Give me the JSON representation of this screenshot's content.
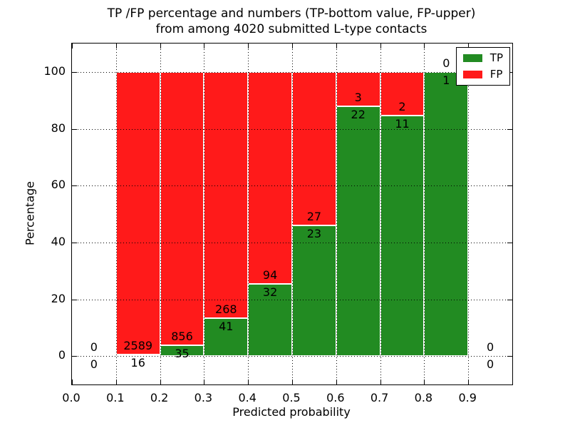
{
  "chart_data": {
    "type": "bar",
    "stacked": true,
    "normalized_to_percent": true,
    "title_lines": [
      "TP /FP percentage and numbers (TP-bottom value, FP-upper)",
      "from among 4020 submitted L-type contacts"
    ],
    "xlabel": "Predicted probability",
    "ylabel": "Percentage",
    "xlim": [
      0.0,
      1.0
    ],
    "ylim": [
      -10,
      110
    ],
    "xticks": [
      "0.0",
      "0.1",
      "0.2",
      "0.3",
      "0.4",
      "0.5",
      "0.6",
      "0.7",
      "0.8",
      "0.9"
    ],
    "yticks": [
      "0",
      "20",
      "40",
      "60",
      "80",
      "100"
    ],
    "grid": true,
    "grid_style": "dotted",
    "tp_color": "#228b22",
    "fp_color": "#ff1a1a",
    "bins": [
      {
        "x0": 0.0,
        "x1": 0.1,
        "tp": 0,
        "fp": 0
      },
      {
        "x0": 0.1,
        "x1": 0.2,
        "tp": 16,
        "fp": 2589
      },
      {
        "x0": 0.2,
        "x1": 0.3,
        "tp": 35,
        "fp": 856
      },
      {
        "x0": 0.3,
        "x1": 0.4,
        "tp": 41,
        "fp": 268
      },
      {
        "x0": 0.4,
        "x1": 0.5,
        "tp": 32,
        "fp": 94
      },
      {
        "x0": 0.5,
        "x1": 0.6,
        "tp": 23,
        "fp": 27
      },
      {
        "x0": 0.6,
        "x1": 0.7,
        "tp": 22,
        "fp": 3
      },
      {
        "x0": 0.7,
        "x1": 0.8,
        "tp": 11,
        "fp": 2
      },
      {
        "x0": 0.8,
        "x1": 0.9,
        "tp": 1,
        "fp": 0
      },
      {
        "x0": 0.9,
        "x1": 1.0,
        "tp": 0,
        "fp": 0
      }
    ],
    "series": [
      {
        "name": "TP",
        "values": [
          0,
          16,
          35,
          41,
          32,
          23,
          22,
          11,
          1,
          0
        ]
      },
      {
        "name": "FP",
        "values": [
          0,
          2589,
          856,
          268,
          94,
          27,
          3,
          2,
          0,
          0
        ]
      }
    ],
    "legend": {
      "position": "upper right",
      "entries": [
        {
          "label": "TP",
          "color": "#228b22"
        },
        {
          "label": "FP",
          "color": "#ff1a1a"
        }
      ]
    }
  }
}
